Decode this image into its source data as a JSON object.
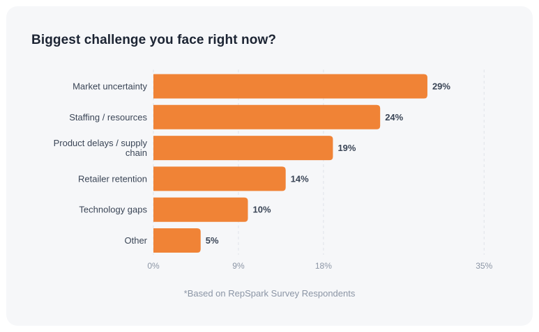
{
  "chart_data": {
    "type": "bar",
    "orientation": "horizontal",
    "title": "Biggest challenge you face right now?",
    "categories": [
      [
        "Market uncertainty"
      ],
      [
        "Staffing / resources"
      ],
      [
        "Product delays / supply",
        "chain"
      ],
      [
        "Retailer retention"
      ],
      [
        "Technology gaps"
      ],
      [
        "Other"
      ]
    ],
    "values": [
      29,
      24,
      19,
      14,
      10,
      5
    ],
    "value_labels": [
      "29%",
      "24%",
      "19%",
      "14%",
      "10%",
      "5%"
    ],
    "x_ticks": [
      0,
      9,
      18,
      35
    ],
    "x_tick_labels": [
      "0%",
      "9%",
      "18%",
      "35%"
    ],
    "xlim": [
      0,
      35
    ],
    "grid": true,
    "footnote": "*Based on RepSpark Survey Respondents"
  },
  "colors": {
    "bar": "#f08336",
    "grid": "#dfe3e9"
  }
}
